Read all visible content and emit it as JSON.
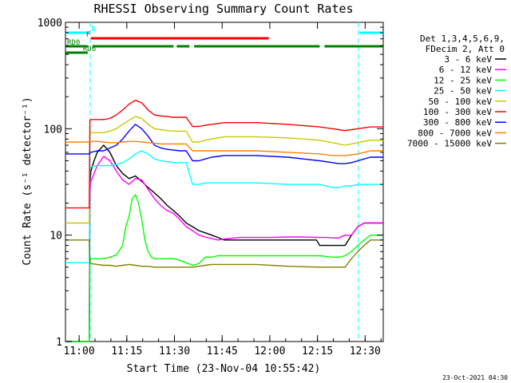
{
  "chart_data": {
    "type": "line",
    "title": "RHESSI Observing Summary Count Rates",
    "xlabel": "Start Time (23-Nov-04 10:55:42)",
    "ylabel": "Count Rate (s⁻¹ detector⁻¹)",
    "x_unit": "minutes since 10:55:42",
    "xlim": [
      0,
      100
    ],
    "ylim": [
      1,
      1000
    ],
    "yscale": "log",
    "x_ticks": [
      {
        "label": "11:00",
        "x": 4.3
      },
      {
        "label": "11:15",
        "x": 19.3
      },
      {
        "label": "11:30",
        "x": 34.3
      },
      {
        "label": "11:45",
        "x": 49.3
      },
      {
        "label": "12:00",
        "x": 64.3
      },
      {
        "label": "12:15",
        "x": 79.3
      },
      {
        "label": "12:30",
        "x": 94.3
      }
    ],
    "y_ticks": [
      {
        "label": "1",
        "y": 1
      },
      {
        "label": "10",
        "y": 10
      },
      {
        "label": "100",
        "y": 100
      },
      {
        "label": "1000",
        "y": 1000
      }
    ],
    "legend": {
      "placement": "right",
      "header": [
        "Det 1,3,4,5,6,9,",
        "FDecim 2, Att 0"
      ]
    },
    "series": [
      {
        "name": "3 - 6 keV",
        "color": "#000000",
        "x": [
          0,
          7.5,
          7.7,
          8,
          9,
          10,
          12,
          14,
          16,
          18,
          20,
          22,
          24,
          26,
          28,
          30,
          32,
          34,
          36,
          38,
          40,
          42,
          44,
          46,
          48,
          50,
          55,
          60,
          65,
          70,
          75,
          79,
          80,
          82,
          84,
          86,
          88,
          90,
          92,
          94,
          96,
          98,
          100
        ],
        "y": [
          1,
          1,
          30,
          40,
          50,
          60,
          70,
          60,
          45,
          38,
          34,
          36,
          32,
          28,
          25,
          22,
          19,
          17,
          15,
          13,
          12,
          11,
          10.5,
          10,
          9.5,
          9,
          9,
          9,
          9,
          9,
          9,
          9,
          8,
          8,
          8,
          8,
          8,
          10,
          12,
          13,
          13,
          13,
          13
        ]
      },
      {
        "name": "6 - 12 keV",
        "color": "#ff00ff",
        "x": [
          0,
          7.5,
          7.7,
          8,
          10,
          12,
          14,
          16,
          18,
          20,
          22,
          24,
          26,
          28,
          30,
          32,
          34,
          36,
          38,
          40,
          42,
          44,
          46,
          48,
          50,
          55,
          60,
          65,
          70,
          75,
          79,
          80,
          82,
          84,
          86,
          88,
          90,
          92,
          94,
          96,
          98,
          100
        ],
        "y": [
          1,
          1,
          25,
          32,
          45,
          55,
          50,
          40,
          33,
          30,
          34,
          33,
          27,
          22,
          19,
          17,
          16,
          14,
          12,
          11,
          10,
          9.6,
          9.3,
          9,
          9.2,
          9.5,
          9.5,
          9.5,
          9.6,
          9.6,
          9.5,
          9.5,
          9.5,
          9.4,
          9.4,
          10,
          10,
          12,
          13,
          13,
          13,
          13
        ]
      },
      {
        "name": "12 - 25 keV",
        "color": "#00ff00",
        "x": [
          0,
          7.5,
          7.7,
          8,
          10,
          12,
          14,
          16,
          18,
          19,
          20,
          21,
          22,
          23,
          24,
          25,
          26,
          27,
          28,
          30,
          32,
          34,
          36,
          38,
          40,
          42,
          44,
          46,
          48,
          50,
          60,
          70,
          80,
          84,
          86,
          88,
          90,
          92,
          94,
          96,
          98,
          100
        ],
        "y": [
          1,
          1,
          5.5,
          6,
          6,
          6,
          6.2,
          6.5,
          8,
          12,
          15,
          22,
          24,
          20,
          14,
          9,
          7,
          6.2,
          6,
          6,
          6,
          6,
          5.8,
          5.5,
          5.2,
          5.4,
          6.2,
          6.2,
          6.4,
          6.4,
          6.4,
          6.4,
          6.4,
          6.2,
          6.2,
          6.4,
          7,
          8,
          9,
          10,
          10,
          10
        ]
      },
      {
        "name": "25 - 50 keV",
        "color": "#00ffff",
        "x": [
          0,
          7.5,
          7.7,
          8,
          10,
          12,
          14,
          16,
          18,
          20,
          22,
          24,
          26,
          28,
          30,
          32,
          34,
          36,
          38,
          40,
          42,
          44,
          46,
          48,
          50,
          60,
          70,
          80,
          84,
          86,
          88,
          90,
          92,
          94,
          96,
          98,
          100
        ],
        "y": [
          5.5,
          5.5,
          44,
          44,
          45,
          45,
          45,
          46,
          48,
          52,
          58,
          62,
          58,
          52,
          50,
          49,
          48,
          48,
          48,
          30,
          30,
          31,
          31,
          31,
          31,
          31,
          30,
          30,
          28,
          28,
          29,
          29,
          30,
          30,
          30,
          30,
          30
        ]
      },
      {
        "name": "50 - 100 keV",
        "color": "#c8c800",
        "x": [
          0,
          7.5,
          7.7,
          8,
          10,
          12,
          14,
          16,
          18,
          20,
          22,
          24,
          26,
          28,
          30,
          32,
          34,
          36,
          38,
          40,
          42,
          44,
          46,
          48,
          50,
          60,
          70,
          80,
          84,
          86,
          88,
          90,
          92,
          94,
          96,
          98,
          100
        ],
        "y": [
          13,
          13,
          90,
          92,
          92,
          92,
          95,
          100,
          110,
          120,
          130,
          125,
          110,
          100,
          98,
          96,
          95,
          95,
          95,
          75,
          75,
          78,
          80,
          82,
          84,
          84,
          82,
          78,
          74,
          72,
          70,
          72,
          74,
          76,
          78,
          78,
          78
        ]
      },
      {
        "name": "100 - 300 keV",
        "color": "#ff0000",
        "x": [
          0,
          7.5,
          7.7,
          8,
          10,
          12,
          14,
          16,
          18,
          20,
          22,
          24,
          26,
          28,
          30,
          32,
          34,
          36,
          38,
          40,
          42,
          44,
          46,
          48,
          50,
          60,
          70,
          80,
          84,
          86,
          88,
          90,
          92,
          94,
          96,
          98,
          100
        ],
        "y": [
          18,
          18,
          120,
          122,
          122,
          122,
          125,
          135,
          150,
          170,
          185,
          175,
          150,
          135,
          132,
          130,
          128,
          128,
          128,
          105,
          105,
          108,
          110,
          112,
          114,
          114,
          110,
          104,
          100,
          98,
          96,
          98,
          100,
          102,
          104,
          104,
          104
        ]
      },
      {
        "name": "300 - 800 keV",
        "color": "#0000ff",
        "x": [
          0,
          7.5,
          7.7,
          8,
          10,
          12,
          14,
          16,
          18,
          20,
          22,
          24,
          26,
          28,
          30,
          32,
          34,
          36,
          38,
          40,
          42,
          44,
          46,
          48,
          50,
          60,
          70,
          80,
          84,
          86,
          88,
          90,
          92,
          94,
          96,
          98,
          100
        ],
        "y": [
          58,
          58,
          60,
          60,
          62,
          62,
          66,
          70,
          80,
          95,
          110,
          100,
          85,
          70,
          66,
          64,
          63,
          62,
          62,
          50,
          50,
          52,
          54,
          55,
          56,
          56,
          54,
          50,
          48,
          47,
          47,
          48,
          50,
          52,
          54,
          54,
          54
        ]
      },
      {
        "name": "800 - 7000 keV",
        "color": "#ff8000",
        "x": [
          0,
          7.5,
          7.7,
          8,
          10,
          12,
          14,
          16,
          18,
          20,
          22,
          24,
          26,
          28,
          30,
          32,
          34,
          36,
          38,
          40,
          42,
          44,
          46,
          48,
          50,
          60,
          70,
          80,
          84,
          86,
          88,
          90,
          92,
          94,
          96,
          98,
          100
        ],
        "y": [
          75,
          75,
          76,
          76,
          76,
          75,
          74,
          74,
          75,
          76,
          76,
          75,
          74,
          73,
          72,
          72,
          72,
          72,
          72,
          62,
          62,
          62,
          62,
          62,
          62,
          62,
          60,
          58,
          56,
          56,
          56,
          57,
          58,
          60,
          62,
          62,
          62
        ]
      },
      {
        "name": "7000 - 15000 keV",
        "color": "#808000",
        "x": [
          0,
          7.5,
          7.7,
          8,
          10,
          12,
          14,
          16,
          18,
          20,
          22,
          24,
          26,
          28,
          30,
          32,
          34,
          36,
          38,
          40,
          42,
          44,
          46,
          48,
          50,
          60,
          70,
          80,
          84,
          86,
          88,
          90,
          92,
          94,
          96,
          98,
          100
        ],
        "y": [
          9,
          9,
          5.5,
          5.4,
          5.3,
          5.2,
          5.2,
          5.1,
          5.2,
          5.3,
          5.2,
          5.1,
          5.1,
          5.0,
          5.0,
          5.0,
          5.0,
          5.0,
          5.0,
          5.0,
          5.1,
          5.2,
          5.3,
          5.3,
          5.3,
          5.3,
          5.1,
          5.0,
          5.0,
          5.0,
          5.0,
          6,
          7,
          8,
          9,
          9,
          9
        ]
      }
    ],
    "flags": [
      {
        "name": "N",
        "color": "#00ffff",
        "segments": [
          [
            0,
            7.5
          ],
          [
            92.5,
            100
          ]
        ],
        "label_x": 8.2
      },
      {
        "name": "F",
        "color": "#ff0000",
        "segments": [
          [
            8,
            64
          ]
        ],
        "label_x": 6.5
      },
      {
        "name": "RD0",
        "color": "#008000",
        "segments": [
          [
            0,
            7
          ],
          [
            8.5,
            34
          ],
          [
            35,
            39
          ],
          [
            40.5,
            80
          ],
          [
            81.5,
            100
          ]
        ],
        "label_x": 0.5
      },
      {
        "name": "RD6",
        "color": "#008000",
        "segments": [],
        "label_x": 5.5
      }
    ],
    "eclipse_boundaries": [
      7.8,
      92.2
    ],
    "footer_timestamp": "23-Oct-2021 04:30"
  }
}
